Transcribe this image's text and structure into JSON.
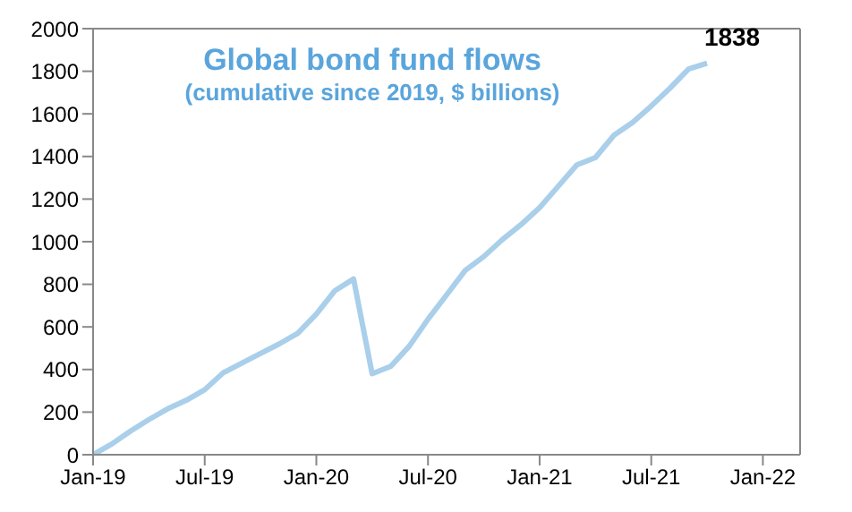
{
  "chart_data": {
    "type": "line",
    "title": "Global bond fund flows",
    "subtitle": "(cumulative since 2019, $ billions)",
    "x": [
      "2019-01",
      "2019-02",
      "2019-03",
      "2019-04",
      "2019-05",
      "2019-06",
      "2019-07",
      "2019-08",
      "2019-09",
      "2019-10",
      "2019-11",
      "2019-12",
      "2020-01",
      "2020-02",
      "2020-03",
      "2020-04",
      "2020-05",
      "2020-06",
      "2020-07",
      "2020-08",
      "2020-09",
      "2020-10",
      "2020-11",
      "2020-12",
      "2021-01",
      "2021-02",
      "2021-03",
      "2021-04",
      "2021-05",
      "2021-06",
      "2021-07",
      "2021-08",
      "2021-09",
      "2021-10"
    ],
    "series": [
      {
        "color": "#a9cfea",
        "values": [
          0,
          50,
          110,
          165,
          215,
          255,
          305,
          385,
          430,
          475,
          520,
          570,
          660,
          770,
          825,
          380,
          415,
          510,
          636,
          750,
          865,
          930,
          1010,
          1080,
          1160,
          1260,
          1360,
          1395,
          1500,
          1560,
          1637,
          1720,
          1810,
          1838
        ]
      }
    ],
    "xlim": [
      "2019-01",
      "2022-03"
    ],
    "xticks": [
      {
        "value": "2019-01",
        "label": "Jan-19"
      },
      {
        "value": "2019-07",
        "label": "Jul-19"
      },
      {
        "value": "2020-01",
        "label": "Jan-20"
      },
      {
        "value": "2020-07",
        "label": "Jul-20"
      },
      {
        "value": "2021-01",
        "label": "Jan-21"
      },
      {
        "value": "2021-07",
        "label": "Jul-21"
      },
      {
        "value": "2022-01",
        "label": "Jan-22"
      }
    ],
    "ylim": [
      0,
      2000
    ],
    "yticks": [
      0,
      200,
      400,
      600,
      800,
      1000,
      1200,
      1400,
      1600,
      1800,
      2000
    ],
    "grid": false,
    "legend": false,
    "marker": "none",
    "line_style": "solid",
    "annotations": [
      {
        "text": "1838",
        "x": "2021-10",
        "y": 1838
      }
    ]
  }
}
